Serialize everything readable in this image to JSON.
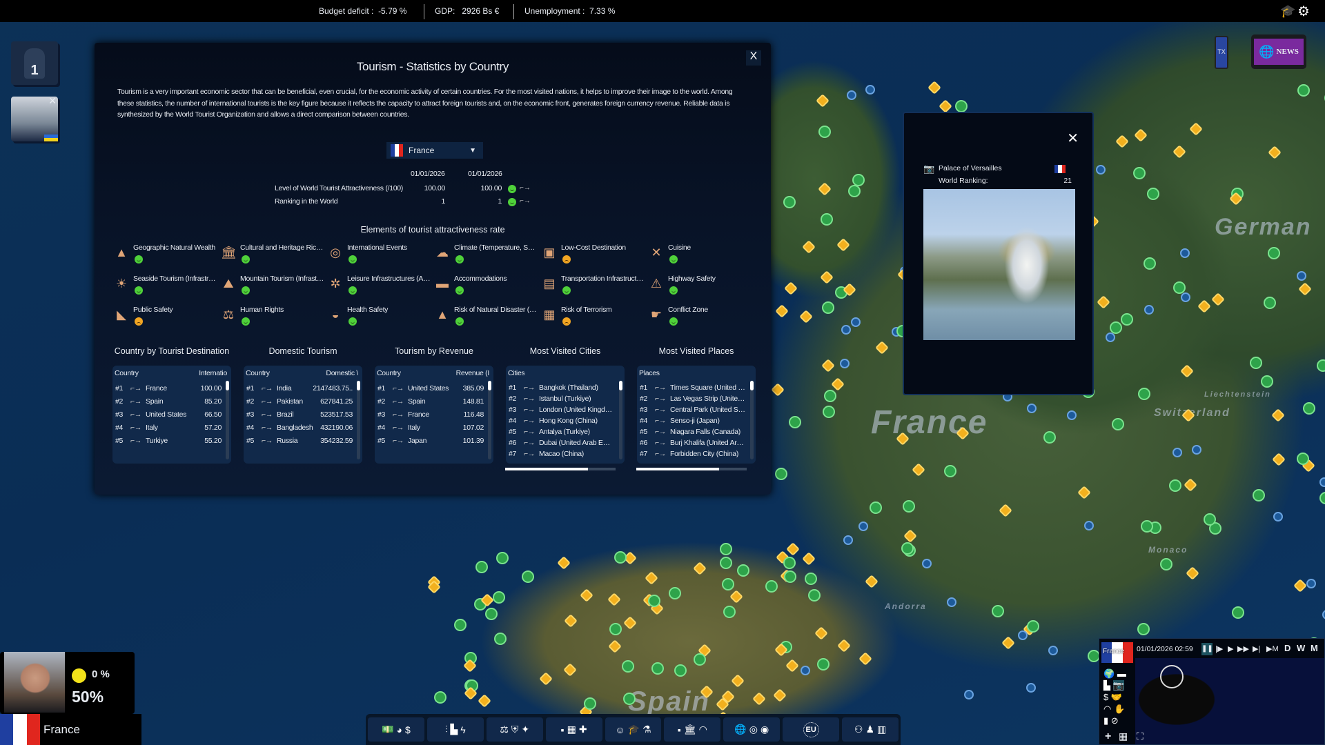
{
  "topbar": {
    "budget_label": "Budget deficit :",
    "budget_value": "-5.79 %",
    "gdp_label": "GDP:",
    "gdp_value": "2926 Bs  €",
    "unemployment_label": "Unemployment :",
    "unemployment_value": "7.33 %"
  },
  "left": {
    "queue_count": "1"
  },
  "dialog": {
    "title": "Tourism - Statistics by Country",
    "description": "Tourism is a very important economic sector that can be beneficial, even crucial, for the economic activity of certain countries. For the most visited nations, it helps to improve their image to the world. Among these statistics, the number of international tourists is the key figure because it reflects the capacity to attract foreign tourists and, on the economic front, generates foreign currency revenue. Reliable data is synthesized by the World Tourist Organization and allows a direct comparison between countries.",
    "close_label": "X",
    "country_select": "France",
    "date1": "01/01/2026",
    "date2": "01/01/2026",
    "stats": [
      {
        "label": "Level of World Tourist Attractiveness (/100)",
        "v1": "100.00",
        "v2": "100.00",
        "mood": "good"
      },
      {
        "label": "Ranking in the World",
        "v1": "1",
        "v2": "1",
        "mood": "good"
      }
    ],
    "elements_title": "Elements of tourist attractiveness rate",
    "elements": [
      {
        "label": "Geographic Natural Wealth",
        "icon": "mountains-icon",
        "glyph": "▲",
        "mood": "good"
      },
      {
        "label": "Cultural and Heritage Riches",
        "icon": "museum-icon",
        "glyph": "🏛",
        "mood": "good"
      },
      {
        "label": "International Events",
        "icon": "globe-icon",
        "glyph": "◎",
        "mood": "good"
      },
      {
        "label": "Climate (Temperature, Sunshine)",
        "icon": "weather-icon",
        "glyph": "☁",
        "mood": "good"
      },
      {
        "label": "Low-Cost Destination",
        "icon": "wallet-icon",
        "glyph": "▣",
        "mood": "bad"
      },
      {
        "label": "Cuisine",
        "icon": "cutlery-icon",
        "glyph": "✕",
        "mood": "good"
      },
      {
        "label": "Seaside Tourism (Infrastructure)",
        "icon": "beach-icon",
        "glyph": "☀",
        "mood": "good"
      },
      {
        "label": "Mountain Tourism (Infrastructure)",
        "icon": "cable-car-icon",
        "glyph": "⛰",
        "mood": "good"
      },
      {
        "label": "Leisure Infrastructures (Amusement)",
        "icon": "ferris-wheel-icon",
        "glyph": "✲",
        "mood": "good"
      },
      {
        "label": "Accommodations",
        "icon": "bed-icon",
        "glyph": "▬",
        "mood": "good"
      },
      {
        "label": "Transportation Infrastructure",
        "icon": "train-icon",
        "glyph": "▤",
        "mood": "good"
      },
      {
        "label": "Highway Safety",
        "icon": "road-sign-icon",
        "glyph": "⚠",
        "mood": "good"
      },
      {
        "label": "Public Safety",
        "icon": "camera-icon",
        "glyph": "◣",
        "mood": "bad"
      },
      {
        "label": "Human Rights",
        "icon": "scales-icon",
        "glyph": "⚖",
        "mood": "good"
      },
      {
        "label": "Health Safety",
        "icon": "mask-icon",
        "glyph": "◒",
        "mood": "good"
      },
      {
        "label": "Risk of Natural Disaster (Earthquake)",
        "icon": "volcano-icon",
        "glyph": "▲",
        "mood": "good"
      },
      {
        "label": "Risk of Terrorism",
        "icon": "terrorism-icon",
        "glyph": "▦",
        "mood": "bad"
      },
      {
        "label": "Conflict Zone",
        "icon": "hand-gun-icon",
        "glyph": "☛",
        "mood": "good"
      }
    ],
    "tables": [
      {
        "title": "Country by Tourist Destination",
        "col1": "Country",
        "col2": "Internatio",
        "rows": [
          [
            "#1",
            "France",
            "100.00"
          ],
          [
            "#2",
            "Spain",
            "85.20"
          ],
          [
            "#3",
            "United States",
            "66.50"
          ],
          [
            "#4",
            "Italy",
            "57.20"
          ],
          [
            "#5",
            "Turkiye",
            "55.20"
          ]
        ]
      },
      {
        "title": "Domestic Tourism",
        "col1": "Country",
        "col2": "Domestic \\",
        "rows": [
          [
            "#1",
            "India",
            "2147483.75.."
          ],
          [
            "#2",
            "Pakistan",
            "627841.25"
          ],
          [
            "#3",
            "Brazil",
            "523517.53"
          ],
          [
            "#4",
            "Bangladesh",
            "432190.06"
          ],
          [
            "#5",
            "Russia",
            "354232.59"
          ]
        ]
      },
      {
        "title": "Tourism by Revenue",
        "col1": "Country",
        "col2": "Revenue (I",
        "rows": [
          [
            "#1",
            "United States",
            "385.09"
          ],
          [
            "#2",
            "Spain",
            "148.81"
          ],
          [
            "#3",
            "France",
            "116.48"
          ],
          [
            "#4",
            "Italy",
            "107.02"
          ],
          [
            "#5",
            "Japan",
            "101.39"
          ]
        ]
      },
      {
        "title": "Most Visited Cities",
        "col1": "Cities",
        "col2": "",
        "rows": [
          [
            "#1",
            "Bangkok (Thailand)",
            ""
          ],
          [
            "#2",
            "Istanbul (Turkiye)",
            ""
          ],
          [
            "#3",
            "London (United Kingdom)",
            ""
          ],
          [
            "#4",
            "Hong Kong (China)",
            ""
          ],
          [
            "#5",
            "Antalya (Turkiye)",
            ""
          ],
          [
            "#6",
            "Dubai (United Arab Emirates)",
            ""
          ],
          [
            "#7",
            "Macao (China)",
            ""
          ]
        ]
      },
      {
        "title": "Most Visited Places",
        "col1": "Places",
        "col2": "",
        "rows": [
          [
            "#1",
            "Times Square (United States)",
            ""
          ],
          [
            "#2",
            "Las Vegas Strip (United States)",
            ""
          ],
          [
            "#3",
            "Central Park (United States)",
            ""
          ],
          [
            "#4",
            "Senso-ji (Japan)",
            ""
          ],
          [
            "#5",
            "Niagara Falls (Canada)",
            ""
          ],
          [
            "#6",
            "Burj Khalifa (United Arab Emirates)",
            ""
          ],
          [
            "#7",
            "Forbidden City (China)",
            ""
          ]
        ]
      }
    ]
  },
  "place_panel": {
    "name": "Palace of Versailles",
    "ranking_label": "World Ranking:",
    "ranking_value": "21"
  },
  "map_labels": {
    "france": "France",
    "germany": "German",
    "spain": "Spain",
    "switzerland": "Switzerland",
    "monaco": "Monaco",
    "andorra": "Andorra",
    "liechtenstein": "Liechtenstein"
  },
  "news": {
    "label": "NEWS",
    "tx_label": "TX"
  },
  "player": {
    "approval_change": "0 %",
    "approval": "50%",
    "country": "France"
  },
  "toolbar": {
    "groups": [
      [
        "money-icon",
        "piggy-bank-icon",
        "tax-bag-icon"
      ],
      [
        "agriculture-icon",
        "industry-icon",
        "energy-icon"
      ],
      [
        "justice-icon",
        "police-icon",
        "army-icon"
      ],
      [
        "business-icon",
        "housing-icon",
        "health-icon"
      ],
      [
        "culture-icon",
        "education-icon",
        "research-icon"
      ],
      [
        "elections-icon",
        "institutions-icon",
        "media-icon"
      ],
      [
        "diplomacy-icon",
        "un-icon",
        "world-icon"
      ],
      [
        "eu-icon"
      ],
      [
        "unions-icon",
        "politics-icon",
        "protest-icon"
      ]
    ],
    "eu_label": "EU"
  },
  "minimap": {
    "country": "France",
    "datetime": "01/01/2026  02:59",
    "speed_labels": [
      "D",
      "W",
      "M"
    ]
  },
  "colors": {
    "accent_good": "#4fd13a",
    "accent_bad": "#f2a623",
    "panel_bg": "#081327",
    "table_bg": "#11294a",
    "france_blue": "#1f3fa0",
    "france_red": "#e0261e"
  }
}
